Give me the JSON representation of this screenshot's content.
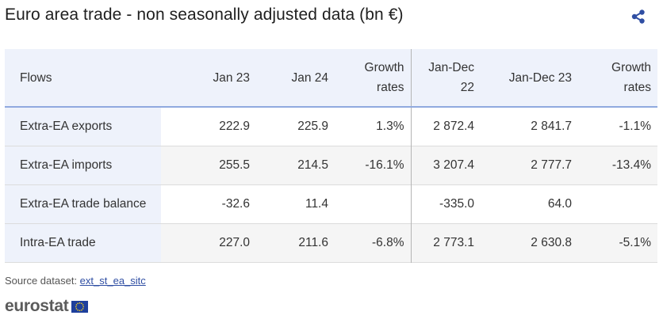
{
  "title": "Euro area trade - non seasonally adjusted data (bn €)",
  "share_icon": "share-icon",
  "table": {
    "headers": {
      "flows": "Flows",
      "jan23": "Jan 23",
      "jan24": "Jan 24",
      "growth1_line1": "Growth",
      "growth1_line2": "rates",
      "jd22_line1": "Jan-Dec",
      "jd22_line2": "22",
      "jd23": "Jan-Dec 23",
      "growth2_line1": "Growth",
      "growth2_line2": "rates"
    },
    "rows": [
      {
        "label": "Extra-EA exports",
        "jan23": "222.9",
        "jan24": "225.9",
        "g1": "1.3%",
        "jd22": "2 872.4",
        "jd23": "2 841.7",
        "g2": "-1.1%"
      },
      {
        "label": "Extra-EA imports",
        "jan23": "255.5",
        "jan24": "214.5",
        "g1": "-16.1%",
        "jd22": "3 207.4",
        "jd23": "2 777.7",
        "g2": "-13.4%"
      },
      {
        "label": "Extra-EA trade balance",
        "jan23": "-32.6",
        "jan24": "11.4",
        "g1": "",
        "jd22": "-335.0",
        "jd23": "64.0",
        "g2": ""
      },
      {
        "label": "Intra-EA trade",
        "jan23": "227.0",
        "jan24": "211.6",
        "g1": "-6.8%",
        "jd22": "2 773.1",
        "jd23": "2 630.8",
        "g2": "-5.1%"
      }
    ]
  },
  "source": {
    "prefix": "Source dataset: ",
    "link": "ext_st_ea_sitc"
  },
  "logo": {
    "text": "eurostat",
    "flag_icon": "eu-flag-icon"
  },
  "colors": {
    "header_bg": "#eef2fb",
    "header_border": "#90a9df",
    "link": "#2f4ea3",
    "share": "#2f4ea3",
    "flag_blue": "#1d3f9c",
    "flag_stars": "#ffd617"
  }
}
